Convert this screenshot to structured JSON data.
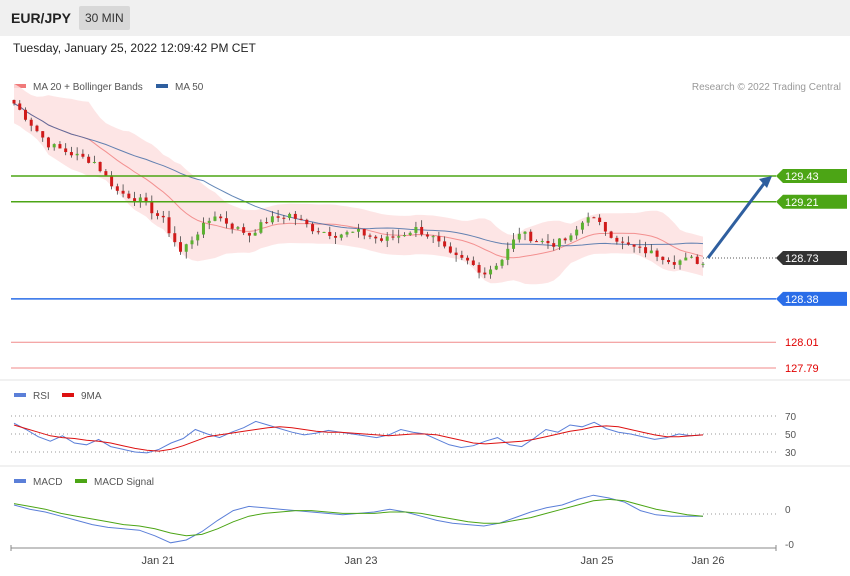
{
  "header": {
    "symbol": "EUR/JPY",
    "timeframe": "30 MIN",
    "datetime": "Tuesday, January 25, 2022 12:09:42 PM CET"
  },
  "credit": "Research © 2022 Trading Central",
  "colors": {
    "up": "#5bb130",
    "down": "#d01a1a",
    "ma20": "#f07a7a",
    "ma50": "#2f5f9f",
    "bands": "#fde0e0",
    "green_level": "#4ca515",
    "blue_level": "#2a6de8",
    "red_level": "#f08a8a",
    "current": "#333333",
    "arrow": "#2f5f9f",
    "rsi": "#5b7fd8",
    "rsi_ma": "#dd1111",
    "macd": "#5b7fd8",
    "macd_signal": "#4ca515"
  },
  "chart_data": [
    {
      "type": "candlestick",
      "title": "EUR/JPY 30 MIN",
      "legend": [
        {
          "name": "MA 20 + Bollinger Bands",
          "color": "#f07a7a"
        },
        {
          "name": "MA 50",
          "color": "#2f5f9f"
        }
      ],
      "xticks": [
        "Jan 21",
        "Jan 23",
        "Jan 25",
        "Jan 26"
      ],
      "ylim": [
        127.55,
        130.4
      ],
      "levels": [
        {
          "value": 129.43,
          "label": "129.43",
          "kind": "resistance"
        },
        {
          "value": 129.21,
          "label": "129.21",
          "kind": "resistance"
        },
        {
          "value": 128.73,
          "label": "128.73",
          "kind": "current"
        },
        {
          "value": 128.38,
          "label": "128.38",
          "kind": "support"
        },
        {
          "value": 128.01,
          "label": "128.01",
          "kind": "support"
        },
        {
          "value": 127.79,
          "label": "127.79",
          "kind": "support"
        }
      ],
      "trend_arrow": {
        "from": 128.73,
        "to": 129.43
      },
      "close_path": [
        [
          0,
          130.05
        ],
        [
          6,
          129.7
        ],
        [
          10,
          129.62
        ],
        [
          14,
          129.55
        ],
        [
          18,
          129.3
        ],
        [
          22,
          129.22
        ],
        [
          26,
          129.05
        ],
        [
          29,
          128.78
        ],
        [
          32,
          128.95
        ],
        [
          35,
          129.1
        ],
        [
          38,
          129.0
        ],
        [
          41,
          128.93
        ],
        [
          44,
          129.05
        ],
        [
          48,
          129.1
        ],
        [
          52,
          128.98
        ],
        [
          56,
          128.93
        ],
        [
          60,
          128.95
        ],
        [
          64,
          128.88
        ],
        [
          67,
          128.92
        ],
        [
          70,
          128.98
        ],
        [
          73,
          128.9
        ],
        [
          76,
          128.75
        ],
        [
          79,
          128.7
        ],
        [
          82,
          128.6
        ],
        [
          85,
          128.72
        ],
        [
          88,
          128.95
        ],
        [
          91,
          128.88
        ],
        [
          94,
          128.85
        ],
        [
          97,
          128.9
        ],
        [
          100,
          129.1
        ],
        [
          103,
          128.97
        ],
        [
          106,
          128.85
        ],
        [
          109,
          128.8
        ],
        [
          112,
          128.76
        ],
        [
          115,
          128.7
        ],
        [
          118,
          128.72
        ],
        [
          120,
          128.68
        ]
      ]
    },
    {
      "type": "line",
      "title": "RSI",
      "series": [
        {
          "name": "RSI"
        },
        {
          "name": "9MA"
        }
      ],
      "yticks": [
        70,
        50,
        30
      ],
      "levels": [
        70,
        50,
        30
      ],
      "rsi": [
        62,
        55,
        47,
        42,
        48,
        40,
        38,
        44,
        36,
        33,
        30,
        29,
        33,
        40,
        45,
        55,
        50,
        46,
        52,
        57,
        64,
        60,
        56,
        52,
        49,
        51,
        54,
        52,
        50,
        48,
        46,
        49,
        55,
        52,
        50,
        44,
        38,
        35,
        37,
        42,
        46,
        38,
        36,
        45,
        55,
        52,
        60,
        58,
        63,
        56,
        52,
        50,
        47,
        44,
        46,
        50,
        48,
        49
      ],
      "rsi_ma": [
        60,
        56,
        52,
        48,
        46,
        45,
        43,
        42,
        40,
        37,
        34,
        32,
        31,
        33,
        37,
        42,
        47,
        49,
        51,
        53,
        55,
        57,
        58,
        57,
        55,
        53,
        52,
        52,
        51,
        50,
        49,
        48,
        49,
        50,
        50,
        49,
        46,
        43,
        40,
        39,
        40,
        41,
        42,
        44,
        47,
        50,
        53,
        55,
        58,
        59,
        58,
        55,
        52,
        49,
        47,
        47,
        48,
        49
      ]
    },
    {
      "type": "line",
      "title": "MACD",
      "series": [
        {
          "name": "MACD"
        },
        {
          "name": "MACD Signal"
        }
      ],
      "yticks": [
        "0",
        "-0"
      ],
      "macd": [
        0.05,
        0.02,
        0.0,
        -0.03,
        -0.06,
        -0.09,
        -0.11,
        -0.12,
        -0.13,
        -0.17,
        -0.22,
        -0.2,
        -0.14,
        -0.06,
        0.01,
        0.04,
        0.03,
        0.02,
        0.01,
        0.0,
        -0.01,
        -0.02,
        -0.01,
        0.0,
        0.02,
        0.0,
        -0.03,
        -0.06,
        -0.08,
        -0.09,
        -0.1,
        -0.08,
        -0.04,
        0.0,
        0.03,
        0.05,
        0.09,
        0.12,
        0.1,
        0.07,
        0.01,
        -0.02,
        -0.03,
        -0.03,
        -0.03
      ],
      "macd_signal": [
        0.06,
        0.04,
        0.02,
        -0.01,
        -0.03,
        -0.05,
        -0.07,
        -0.09,
        -0.1,
        -0.12,
        -0.15,
        -0.17,
        -0.16,
        -0.12,
        -0.07,
        -0.03,
        -0.01,
        0.0,
        0.01,
        0.01,
        0.0,
        -0.01,
        -0.01,
        -0.01,
        0.0,
        0.0,
        -0.01,
        -0.03,
        -0.05,
        -0.07,
        -0.08,
        -0.08,
        -0.06,
        -0.04,
        -0.01,
        0.02,
        0.05,
        0.08,
        0.09,
        0.08,
        0.05,
        0.02,
        0.0,
        -0.02,
        -0.03
      ]
    }
  ]
}
